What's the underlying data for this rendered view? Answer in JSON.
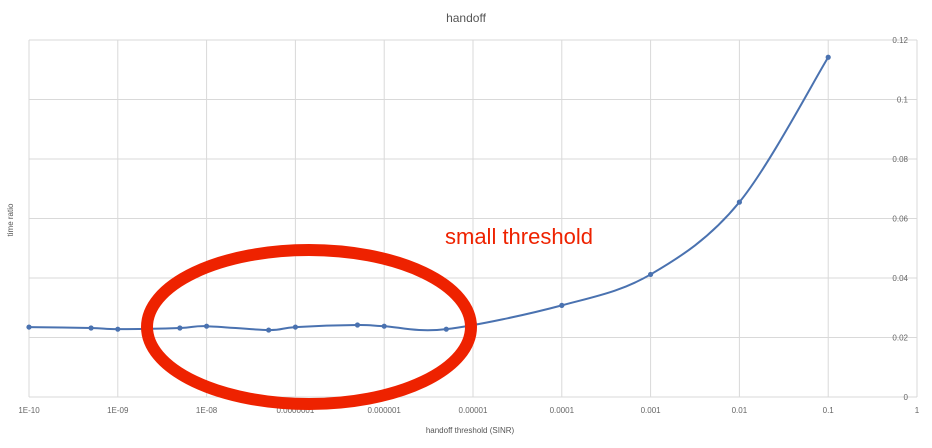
{
  "chart_data": {
    "type": "line",
    "title": "handoff",
    "xlabel": "handoff threshold  (SINR)",
    "ylabel": "time ratio",
    "x_scale": "log",
    "xlim": [
      1e-10,
      1
    ],
    "ylim": [
      0,
      0.12
    ],
    "grid": true,
    "y_axis_position": "right",
    "x_tick_values": [
      1e-10,
      1e-09,
      1e-08,
      1e-07,
      1e-06,
      1e-05,
      0.0001,
      0.001,
      0.01,
      0.1,
      1
    ],
    "x_tick_labels": [
      "1E-10",
      "1E-09",
      "1E-08",
      "0.0000001",
      "0.000001",
      "0.00001",
      "0.0001",
      "0.001",
      "0.01",
      "0.1",
      "1"
    ],
    "y_tick_values": [
      0,
      0.02,
      0.04,
      0.06,
      0.08,
      0.1,
      0.12
    ],
    "y_tick_labels": [
      "0",
      "0.02",
      "0.04",
      "0.06",
      "0.08",
      "0.1",
      "0.12"
    ],
    "series": [
      {
        "color": "#4a72b0",
        "points": [
          [
            1e-10,
            0.0235
          ],
          [
            5e-10,
            0.0232
          ],
          [
            1e-09,
            0.0228
          ],
          [
            5e-09,
            0.0232
          ],
          [
            1e-08,
            0.0238
          ],
          [
            5e-08,
            0.0225
          ],
          [
            1e-07,
            0.0235
          ],
          [
            5e-07,
            0.0242
          ],
          [
            1e-06,
            0.0238
          ],
          [
            5e-06,
            0.0228
          ],
          [
            0.0001,
            0.0308
          ],
          [
            0.001,
            0.0412
          ],
          [
            0.01,
            0.0655
          ],
          [
            0.1,
            0.1142
          ]
        ]
      }
    ],
    "annotations": [
      {
        "text": "small threshold",
        "color": "#ee2200"
      }
    ]
  }
}
